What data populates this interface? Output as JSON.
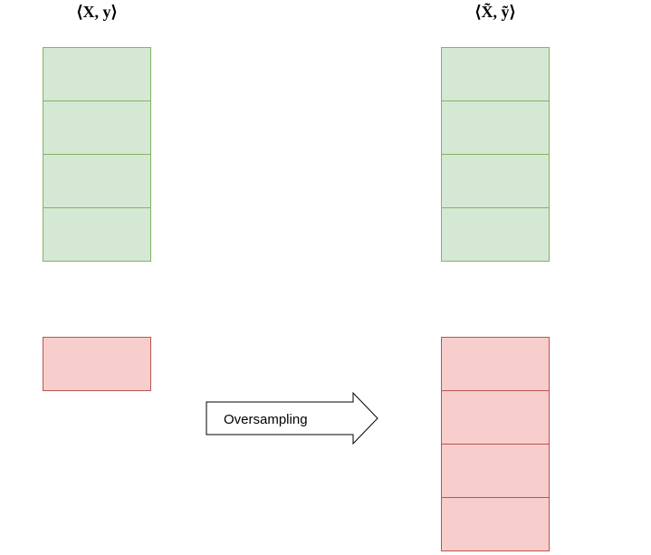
{
  "diagram": {
    "left": {
      "title": "⟨X, y⟩",
      "majority_blocks": 4,
      "minority_blocks": 1
    },
    "right": {
      "title": "⟨X̃, ỹ⟩",
      "majority_blocks": 4,
      "minority_blocks": 4
    },
    "arrow": {
      "label": "Oversampling"
    },
    "colors": {
      "majority_fill": "#d5e8d4",
      "majority_stroke": "#82b366",
      "minority_fill": "#f8cecc",
      "minority_stroke": "#b85450",
      "arrow_fill": "#ffffff",
      "arrow_stroke": "#000000"
    }
  }
}
